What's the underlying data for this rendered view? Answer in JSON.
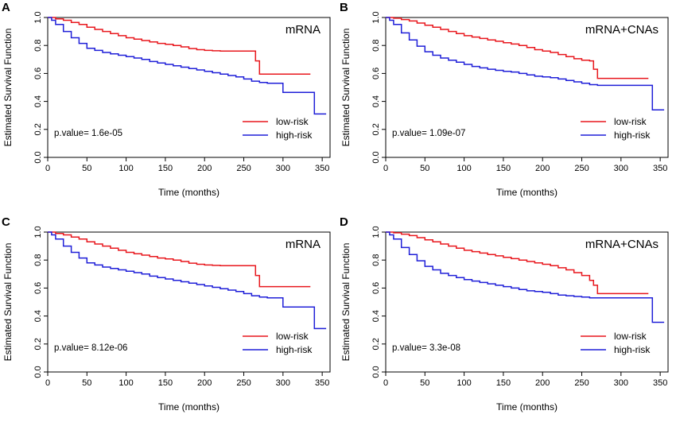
{
  "chart_data": [
    {
      "type": "line",
      "panel_letter": "A",
      "title": "mRNA",
      "xlabel": "Time (months)",
      "ylabel": "Estimated Survival Function",
      "xticks": [
        "0",
        "50",
        "100",
        "150",
        "200",
        "250",
        "300",
        "350"
      ],
      "yticks": [
        "0.0",
        "0.2",
        "0.4",
        "0.6",
        "0.8",
        "1.0"
      ],
      "xlim": [
        0,
        360
      ],
      "ylim": [
        0,
        1.0
      ],
      "pvalue_text": "p.value= 1.6e-05",
      "legend_position": "bottom-right",
      "series": [
        {
          "name": "low-risk",
          "color": "#e8171d",
          "x": [
            0,
            10,
            20,
            30,
            40,
            50,
            60,
            70,
            80,
            90,
            100,
            110,
            120,
            130,
            140,
            150,
            160,
            170,
            180,
            190,
            200,
            210,
            220,
            230,
            240,
            250,
            260,
            265,
            270,
            280,
            300,
            320,
            335
          ],
          "y": [
            1.0,
            0.99,
            0.98,
            0.965,
            0.95,
            0.93,
            0.915,
            0.9,
            0.885,
            0.87,
            0.855,
            0.845,
            0.835,
            0.825,
            0.815,
            0.808,
            0.8,
            0.79,
            0.778,
            0.77,
            0.765,
            0.762,
            0.76,
            0.76,
            0.76,
            0.76,
            0.76,
            0.69,
            0.595,
            0.595,
            0.595,
            0.595,
            0.595
          ]
        },
        {
          "name": "high-risk",
          "color": "#1f1fd8",
          "x": [
            0,
            5,
            10,
            20,
            30,
            40,
            50,
            60,
            70,
            80,
            90,
            100,
            110,
            120,
            130,
            140,
            150,
            160,
            170,
            180,
            190,
            200,
            210,
            220,
            230,
            240,
            250,
            260,
            270,
            280,
            300,
            320,
            335,
            340,
            355
          ],
          "y": [
            1.0,
            0.98,
            0.95,
            0.9,
            0.855,
            0.815,
            0.78,
            0.765,
            0.75,
            0.74,
            0.73,
            0.72,
            0.71,
            0.7,
            0.685,
            0.675,
            0.665,
            0.655,
            0.645,
            0.635,
            0.625,
            0.615,
            0.605,
            0.595,
            0.585,
            0.575,
            0.56,
            0.545,
            0.535,
            0.53,
            0.465,
            0.465,
            0.465,
            0.31,
            0.31
          ]
        }
      ]
    },
    {
      "type": "line",
      "panel_letter": "B",
      "title": "mRNA+CNAs",
      "xlabel": "Time (months)",
      "ylabel": "Estimated Survival Function",
      "xticks": [
        "0",
        "50",
        "100",
        "150",
        "200",
        "250",
        "300",
        "350"
      ],
      "yticks": [
        "0.0",
        "0.2",
        "0.4",
        "0.6",
        "0.8",
        "1.0"
      ],
      "xlim": [
        0,
        360
      ],
      "ylim": [
        0,
        1.0
      ],
      "pvalue_text": "p.value= 1.09e-07",
      "legend_position": "bottom-right",
      "series": [
        {
          "name": "low-risk",
          "color": "#e8171d",
          "x": [
            0,
            10,
            20,
            30,
            40,
            50,
            60,
            70,
            80,
            90,
            100,
            110,
            120,
            130,
            140,
            150,
            160,
            170,
            180,
            190,
            200,
            210,
            220,
            230,
            240,
            250,
            260,
            265,
            270,
            280,
            300,
            320,
            335
          ],
          "y": [
            1.0,
            0.995,
            0.985,
            0.975,
            0.96,
            0.945,
            0.93,
            0.915,
            0.9,
            0.885,
            0.87,
            0.86,
            0.85,
            0.84,
            0.83,
            0.82,
            0.81,
            0.8,
            0.785,
            0.77,
            0.76,
            0.75,
            0.735,
            0.72,
            0.705,
            0.695,
            0.69,
            0.63,
            0.565,
            0.565,
            0.565,
            0.565,
            0.565
          ]
        },
        {
          "name": "high-risk",
          "color": "#1f1fd8",
          "x": [
            0,
            5,
            10,
            20,
            30,
            40,
            50,
            60,
            70,
            80,
            90,
            100,
            110,
            120,
            130,
            140,
            150,
            160,
            170,
            180,
            190,
            200,
            210,
            220,
            230,
            240,
            250,
            260,
            270,
            280,
            300,
            320,
            335,
            340,
            355
          ],
          "y": [
            1.0,
            0.98,
            0.95,
            0.89,
            0.84,
            0.795,
            0.755,
            0.73,
            0.71,
            0.695,
            0.68,
            0.665,
            0.65,
            0.64,
            0.63,
            0.622,
            0.615,
            0.61,
            0.6,
            0.59,
            0.58,
            0.575,
            0.57,
            0.56,
            0.55,
            0.54,
            0.53,
            0.52,
            0.515,
            0.515,
            0.515,
            0.515,
            0.515,
            0.34,
            0.34
          ]
        }
      ]
    },
    {
      "type": "line",
      "panel_letter": "C",
      "title": "mRNA",
      "xlabel": "Time (months)",
      "ylabel": "Estimated Survival Function",
      "xticks": [
        "0",
        "50",
        "100",
        "150",
        "200",
        "250",
        "300",
        "350"
      ],
      "yticks": [
        "0.0",
        "0.2",
        "0.4",
        "0.6",
        "0.8",
        "1.0"
      ],
      "xlim": [
        0,
        360
      ],
      "ylim": [
        0,
        1.0
      ],
      "pvalue_text": "p.value= 8.12e-06",
      "legend_position": "bottom-right",
      "series": [
        {
          "name": "low-risk",
          "color": "#e8171d",
          "x": [
            0,
            10,
            20,
            30,
            40,
            50,
            60,
            70,
            80,
            90,
            100,
            110,
            120,
            130,
            140,
            150,
            160,
            170,
            180,
            190,
            200,
            210,
            220,
            230,
            240,
            250,
            260,
            265,
            270,
            280,
            300,
            320,
            335
          ],
          "y": [
            1.0,
            0.99,
            0.98,
            0.965,
            0.95,
            0.93,
            0.915,
            0.9,
            0.885,
            0.87,
            0.855,
            0.845,
            0.835,
            0.825,
            0.815,
            0.808,
            0.8,
            0.79,
            0.778,
            0.77,
            0.765,
            0.762,
            0.76,
            0.76,
            0.76,
            0.76,
            0.76,
            0.69,
            0.61,
            0.61,
            0.61,
            0.61,
            0.61
          ]
        },
        {
          "name": "high-risk",
          "color": "#1f1fd8",
          "x": [
            0,
            5,
            10,
            20,
            30,
            40,
            50,
            60,
            70,
            80,
            90,
            100,
            110,
            120,
            130,
            140,
            150,
            160,
            170,
            180,
            190,
            200,
            210,
            220,
            230,
            240,
            250,
            260,
            270,
            280,
            300,
            320,
            335,
            340,
            355
          ],
          "y": [
            1.0,
            0.98,
            0.95,
            0.9,
            0.855,
            0.815,
            0.78,
            0.765,
            0.75,
            0.74,
            0.73,
            0.72,
            0.71,
            0.7,
            0.685,
            0.675,
            0.665,
            0.655,
            0.645,
            0.635,
            0.625,
            0.615,
            0.605,
            0.595,
            0.585,
            0.575,
            0.56,
            0.545,
            0.535,
            0.53,
            0.465,
            0.465,
            0.465,
            0.31,
            0.31
          ]
        }
      ]
    },
    {
      "type": "line",
      "panel_letter": "D",
      "title": "mRNA+CNAs",
      "xlabel": "Time (months)",
      "ylabel": "Estimated Survival Function",
      "xticks": [
        "0",
        "50",
        "100",
        "150",
        "200",
        "250",
        "300",
        "350"
      ],
      "yticks": [
        "0.0",
        "0.2",
        "0.4",
        "0.6",
        "0.8",
        "1.0"
      ],
      "xlim": [
        0,
        360
      ],
      "ylim": [
        0,
        1.0
      ],
      "pvalue_text": "p.value= 3.3e-08",
      "legend_position": "bottom-right",
      "series": [
        {
          "name": "low-risk",
          "color": "#e8171d",
          "x": [
            0,
            10,
            20,
            30,
            40,
            50,
            60,
            70,
            80,
            90,
            100,
            110,
            120,
            130,
            140,
            150,
            160,
            170,
            180,
            190,
            200,
            210,
            220,
            230,
            240,
            250,
            260,
            265,
            270,
            280,
            300,
            320,
            335
          ],
          "y": [
            1.0,
            0.995,
            0.985,
            0.975,
            0.96,
            0.945,
            0.93,
            0.915,
            0.9,
            0.885,
            0.87,
            0.86,
            0.85,
            0.84,
            0.83,
            0.82,
            0.81,
            0.8,
            0.79,
            0.78,
            0.77,
            0.76,
            0.745,
            0.73,
            0.71,
            0.69,
            0.655,
            0.62,
            0.56,
            0.56,
            0.56,
            0.56,
            0.56
          ]
        },
        {
          "name": "high-risk",
          "color": "#1f1fd8",
          "x": [
            0,
            5,
            10,
            20,
            30,
            40,
            50,
            60,
            70,
            80,
            90,
            100,
            110,
            120,
            130,
            140,
            150,
            160,
            170,
            180,
            190,
            200,
            210,
            220,
            230,
            240,
            250,
            260,
            270,
            280,
            300,
            320,
            335,
            340,
            355
          ],
          "y": [
            1.0,
            0.98,
            0.95,
            0.89,
            0.84,
            0.795,
            0.755,
            0.73,
            0.705,
            0.69,
            0.675,
            0.66,
            0.65,
            0.64,
            0.63,
            0.62,
            0.61,
            0.6,
            0.59,
            0.58,
            0.575,
            0.57,
            0.56,
            0.55,
            0.545,
            0.54,
            0.535,
            0.53,
            0.53,
            0.53,
            0.53,
            0.53,
            0.53,
            0.355,
            0.355
          ]
        }
      ]
    }
  ]
}
